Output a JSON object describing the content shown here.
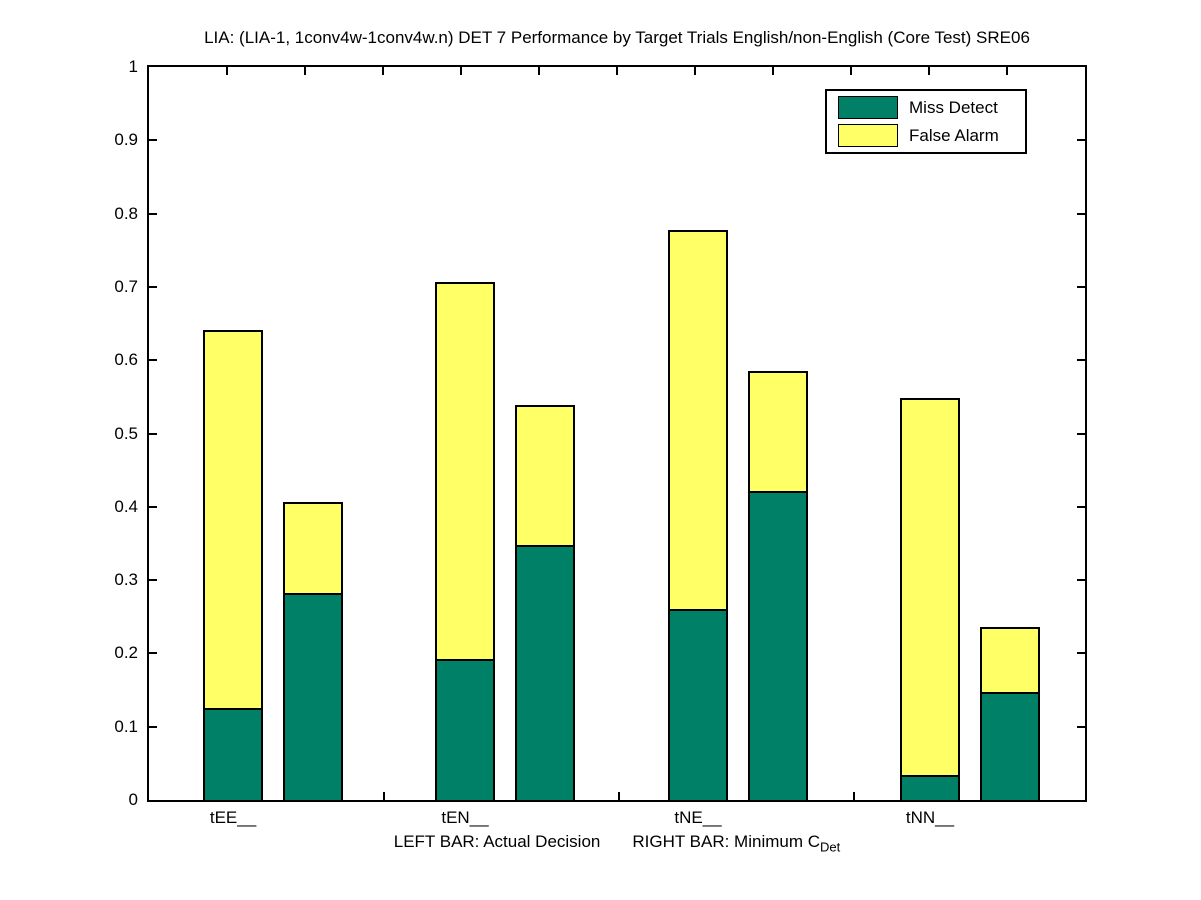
{
  "title": "LIA: (LIA-1, 1conv4w-1conv4w.n) DET 7 Performance by Target Trials English/non-English (Core Test) SRE06",
  "legend": {
    "items": [
      {
        "label": "Miss Detect",
        "color": "#008066"
      },
      {
        "label": "False Alarm",
        "color": "#FFFF66"
      }
    ]
  },
  "xlabel": {
    "left_bar": "LEFT BAR: Actual Decision",
    "right_bar": "RIGHT BAR: Minimum C",
    "subscript": "Det"
  },
  "axes": {
    "ytick_labels": [
      "0",
      "0.1",
      "0.2",
      "0.3",
      "0.4",
      "0.5",
      "0.6",
      "0.7",
      "0.8",
      "0.9",
      "1"
    ],
    "yticks": [
      0,
      0.1,
      0.2,
      0.3,
      0.4,
      0.5,
      0.6,
      0.7,
      0.8,
      0.9,
      1
    ]
  },
  "chart_data": {
    "type": "bar",
    "stacked": true,
    "title": "LIA: (LIA-1, 1conv4w-1conv4w.n) DET 7 Performance by Target Trials English/non-English (Core Test) SRE06",
    "xlabel": "LEFT BAR: Actual Decision    RIGHT BAR: Minimum C_Det",
    "ylabel": "",
    "categories": [
      "tEE__",
      "tEN__",
      "tNE__",
      "tNN__"
    ],
    "bar_pair_labels": [
      "Actual Decision",
      "Minimum C_Det"
    ],
    "series": [
      {
        "name": "Miss Detect",
        "color": "#008066",
        "values_left_bar": [
          0.125,
          0.192,
          0.26,
          0.034
        ],
        "values_right_bar": [
          0.283,
          0.348,
          0.421,
          0.147
        ]
      },
      {
        "name": "False Alarm",
        "color": "#FFFF66",
        "values_left_bar": [
          0.516,
          0.515,
          0.517,
          0.515
        ],
        "values_right_bar": [
          0.124,
          0.191,
          0.164,
          0.089
        ]
      }
    ],
    "stack_totals_left_bar": [
      0.641,
      0.707,
      0.777,
      0.549
    ],
    "stack_totals_right_bar": [
      0.407,
      0.539,
      0.585,
      0.236
    ],
    "ylim": [
      0,
      1
    ],
    "yticks": [
      0,
      0.1,
      0.2,
      0.3,
      0.4,
      0.5,
      0.6,
      0.7,
      0.8,
      0.9,
      1
    ],
    "grid": false,
    "legend_position": "upper right"
  }
}
